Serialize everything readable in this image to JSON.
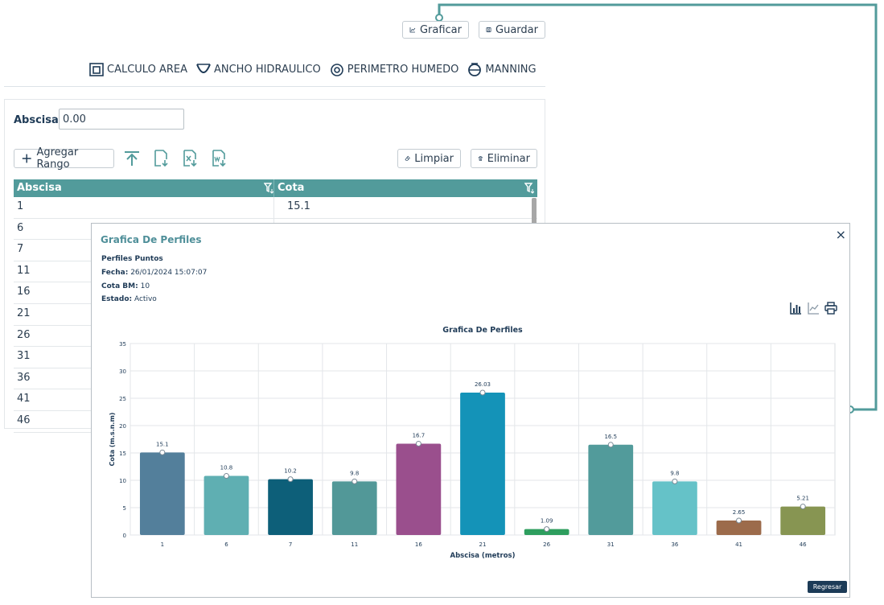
{
  "top_buttons": {
    "graficar": "Graficar",
    "guardar": "Guardar"
  },
  "tools": {
    "area": "CALCULO AREA",
    "ancho": "ANCHO HIDRAULICO",
    "perimetro": "PERIMETRO HUMEDO",
    "manning": "MANNING"
  },
  "form": {
    "abscisa_label": "Abscisa:",
    "abscisa_value": "0.00"
  },
  "actions": {
    "agregar": "Agregar Rango",
    "limpiar": "Limpiar",
    "eliminar": "Eliminar"
  },
  "table": {
    "headers": [
      "Abscisa",
      "Cota"
    ],
    "rows": [
      {
        "a": "1",
        "b": "15.1"
      },
      {
        "a": "6",
        "b": ""
      },
      {
        "a": "7",
        "b": ""
      },
      {
        "a": "11",
        "b": ""
      },
      {
        "a": "16",
        "b": ""
      },
      {
        "a": "21",
        "b": ""
      },
      {
        "a": "26",
        "b": ""
      },
      {
        "a": "31",
        "b": ""
      },
      {
        "a": "36",
        "b": ""
      },
      {
        "a": "41",
        "b": ""
      },
      {
        "a": "46",
        "b": ""
      }
    ]
  },
  "modal": {
    "title": "Grafica De Perfiles",
    "perfiles": "Perfiles Puntos",
    "fecha_label": "Fecha:",
    "fecha": "26/01/2024 15:07:07",
    "cota_label": "Cota BM:",
    "cota": "10",
    "estado_label": "Estado:",
    "estado": "Activo",
    "regresar": "Regresar",
    "close": "×"
  },
  "chart_data": {
    "type": "bar",
    "title": "Grafica De Perfiles",
    "xlabel": "Abscisa (metros)",
    "ylabel": "Cota (m.s.n.m)",
    "ylim": [
      0,
      35
    ],
    "yticks": [
      0,
      5,
      10,
      15,
      20,
      25,
      30,
      35
    ],
    "categories": [
      "1",
      "6",
      "7",
      "11",
      "16",
      "21",
      "26",
      "31",
      "36",
      "41",
      "46"
    ],
    "values": [
      15.1,
      10.8,
      10.2,
      9.8,
      16.7,
      26.03,
      1.09,
      16.5,
      9.8,
      2.65,
      5.21
    ],
    "colors": [
      "#537f9b",
      "#5fafb2",
      "#0d5f79",
      "#529898",
      "#9a4f8d",
      "#1493b8",
      "#2e9e5e",
      "#529b9b",
      "#65c2c8",
      "#9c6b4b",
      "#879552"
    ],
    "grid": true
  }
}
